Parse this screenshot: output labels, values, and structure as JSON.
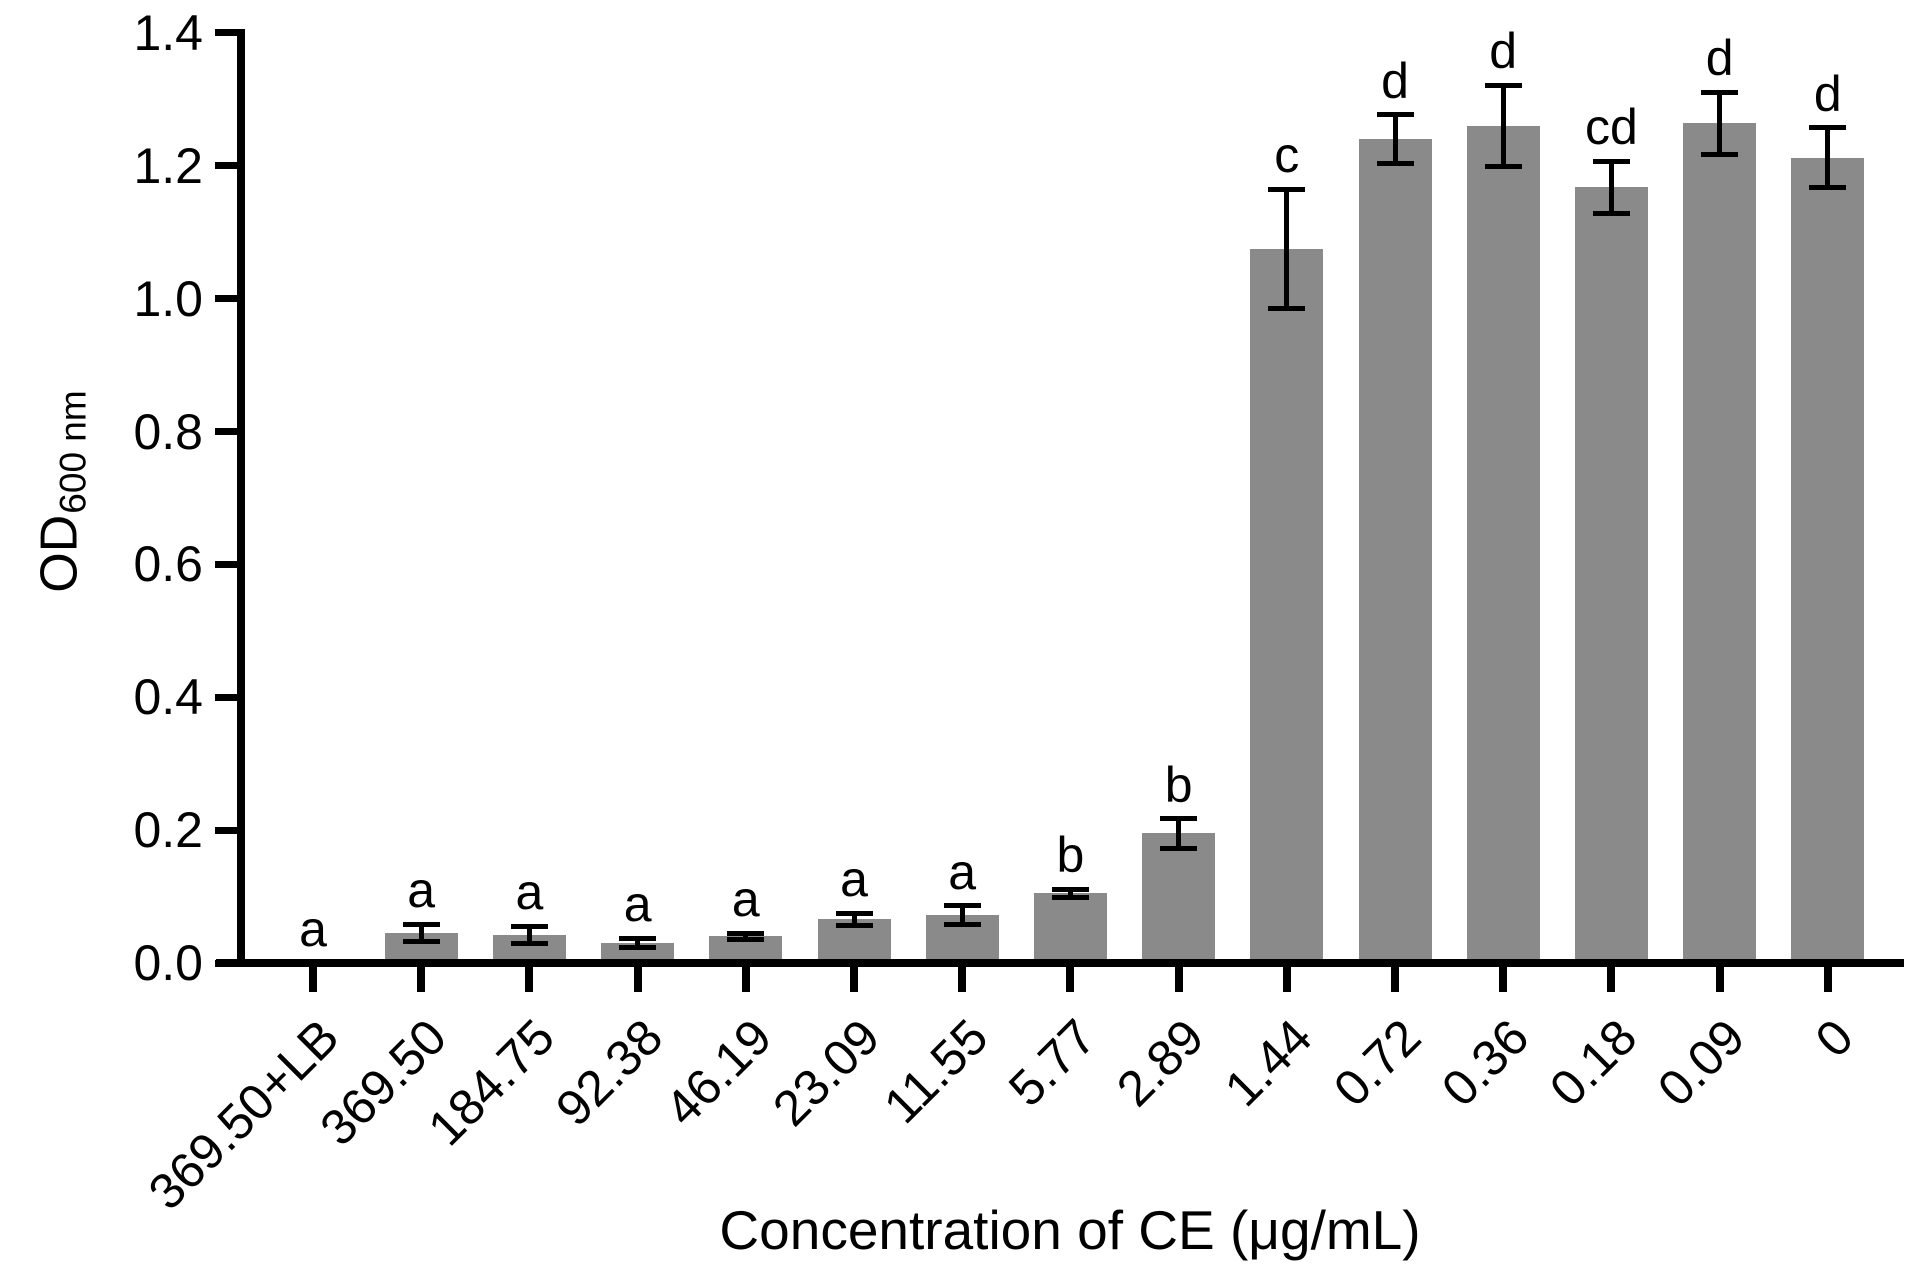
{
  "chart_data": {
    "type": "bar",
    "title": "",
    "xlabel": "Concentration of CE (μg/mL)",
    "ylabel_main": "OD",
    "ylabel_sub": "600 nm",
    "categories": [
      "369.50+LB",
      "369.50",
      "184.75",
      "92.38",
      "46.19",
      "23.09",
      "11.55",
      "5.77",
      "2.89",
      "1.44",
      "0.72",
      "0.36",
      "0.18",
      "0.09",
      "0"
    ],
    "values": [
      0,
      0.045,
      0.042,
      0.03,
      0.04,
      0.066,
      0.072,
      0.105,
      0.195,
      1.075,
      1.24,
      1.26,
      1.168,
      1.264,
      1.212
    ],
    "errors": [
      0,
      0.013,
      0.013,
      0.007,
      0.005,
      0.009,
      0.014,
      0.006,
      0.022,
      0.09,
      0.037,
      0.061,
      0.039,
      0.047,
      0.045
    ],
    "sig_letters": [
      "a",
      "a",
      "a",
      "a",
      "a",
      "a",
      "a",
      "b",
      "b",
      "c",
      "d",
      "d",
      "cd",
      "d",
      "d"
    ],
    "ylim": [
      0.0,
      1.4
    ],
    "yticks": [
      0.0,
      0.2,
      0.4,
      0.6,
      0.8,
      1.0,
      1.2,
      1.4
    ],
    "ytick_labels": [
      "0.0",
      "0.2",
      "0.4",
      "0.6",
      "0.8",
      "1.0",
      "1.2",
      "1.4"
    ],
    "bar_color": "#8a8a8a",
    "axis_color": "#000000",
    "grid": false,
    "legend": "none"
  }
}
